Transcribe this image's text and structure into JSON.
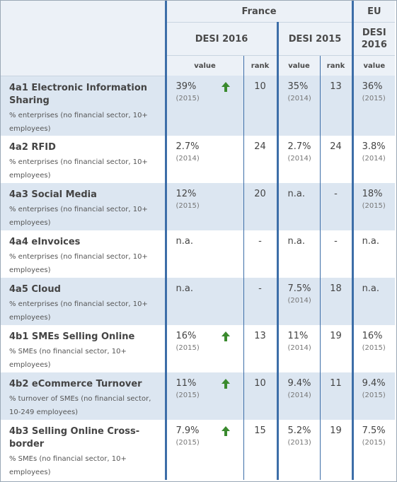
{
  "header": {
    "country": "France",
    "eu": "EU",
    "desi_2016": "DESI 2016",
    "desi_2015": "DESI 2015",
    "eu_desi_line1": "DESI",
    "eu_desi_line2": "2016",
    "value_label": "value",
    "rank_label": "rank",
    "value_label_2015": "value",
    "rank_label_2015": "rank",
    "value_label_eu": "value"
  },
  "colors": {
    "accent": "#3d6ea8",
    "shade": "#dce6f1",
    "arrow": "#3a8a2e"
  },
  "rows": [
    {
      "code_name": "4a1 Electronic Information Sharing",
      "desc": "% enterprises (no financial sector, 10+ employees)",
      "v2016": "39%",
      "y2016": "(2015)",
      "up": true,
      "r2016": "10",
      "v2015": "35%",
      "y2015": "(2014)",
      "r2015": "13",
      "veu": "36%",
      "yeu": "(2015)"
    },
    {
      "code_name": "4a2 RFID",
      "desc": "% enterprises (no financial sector, 10+ employees)",
      "v2016": "2.7%",
      "y2016": "(2014)",
      "up": false,
      "r2016": "24",
      "v2015": "2.7%",
      "y2015": "(2014)",
      "r2015": "24",
      "veu": "3.8%",
      "yeu": "(2014)"
    },
    {
      "code_name": "4a3 Social Media",
      "desc": "% enterprises (no financial sector, 10+ employees)",
      "v2016": "12%",
      "y2016": "(2015)",
      "up": false,
      "r2016": "20",
      "v2015": "n.a.",
      "y2015": "",
      "r2015": "-",
      "veu": "18%",
      "yeu": "(2015)"
    },
    {
      "code_name": "4a4 eInvoices",
      "desc": "% enterprises (no financial sector, 10+ employees)",
      "v2016": "n.a.",
      "y2016": "",
      "up": false,
      "r2016": "-",
      "v2015": "n.a.",
      "y2015": "",
      "r2015": "-",
      "veu": "n.a.",
      "yeu": ""
    },
    {
      "code_name": "4a5 Cloud",
      "desc": "% enterprises (no financial sector, 10+ employees)",
      "v2016": "n.a.",
      "y2016": "",
      "up": false,
      "r2016": "-",
      "v2015": "7.5%",
      "y2015": "(2014)",
      "r2015": "18",
      "veu": "n.a.",
      "yeu": ""
    },
    {
      "code_name": "4b1 SMEs Selling Online",
      "desc": "% SMEs (no financial sector, 10+ employees)",
      "v2016": "16%",
      "y2016": "(2015)",
      "up": true,
      "r2016": "13",
      "v2015": "11%",
      "y2015": "(2014)",
      "r2015": "19",
      "veu": "16%",
      "yeu": "(2015)"
    },
    {
      "code_name": "4b2 eCommerce Turnover",
      "desc": "% turnover of SMEs (no financial sector, 10-249 employees)",
      "v2016": "11%",
      "y2016": "(2015)",
      "up": true,
      "r2016": "10",
      "v2015": "9.4%",
      "y2015": "(2014)",
      "r2015": "11",
      "veu": "9.4%",
      "yeu": "(2015)"
    },
    {
      "code_name": "4b3 Selling Online Cross-border",
      "desc": "% SMEs (no financial sector, 10+ employees)",
      "v2016": "7.9%",
      "y2016": "(2015)",
      "up": true,
      "r2016": "15",
      "v2015": "5.2%",
      "y2015": "(2013)",
      "r2015": "19",
      "veu": "7.5%",
      "yeu": "(2015)"
    }
  ]
}
